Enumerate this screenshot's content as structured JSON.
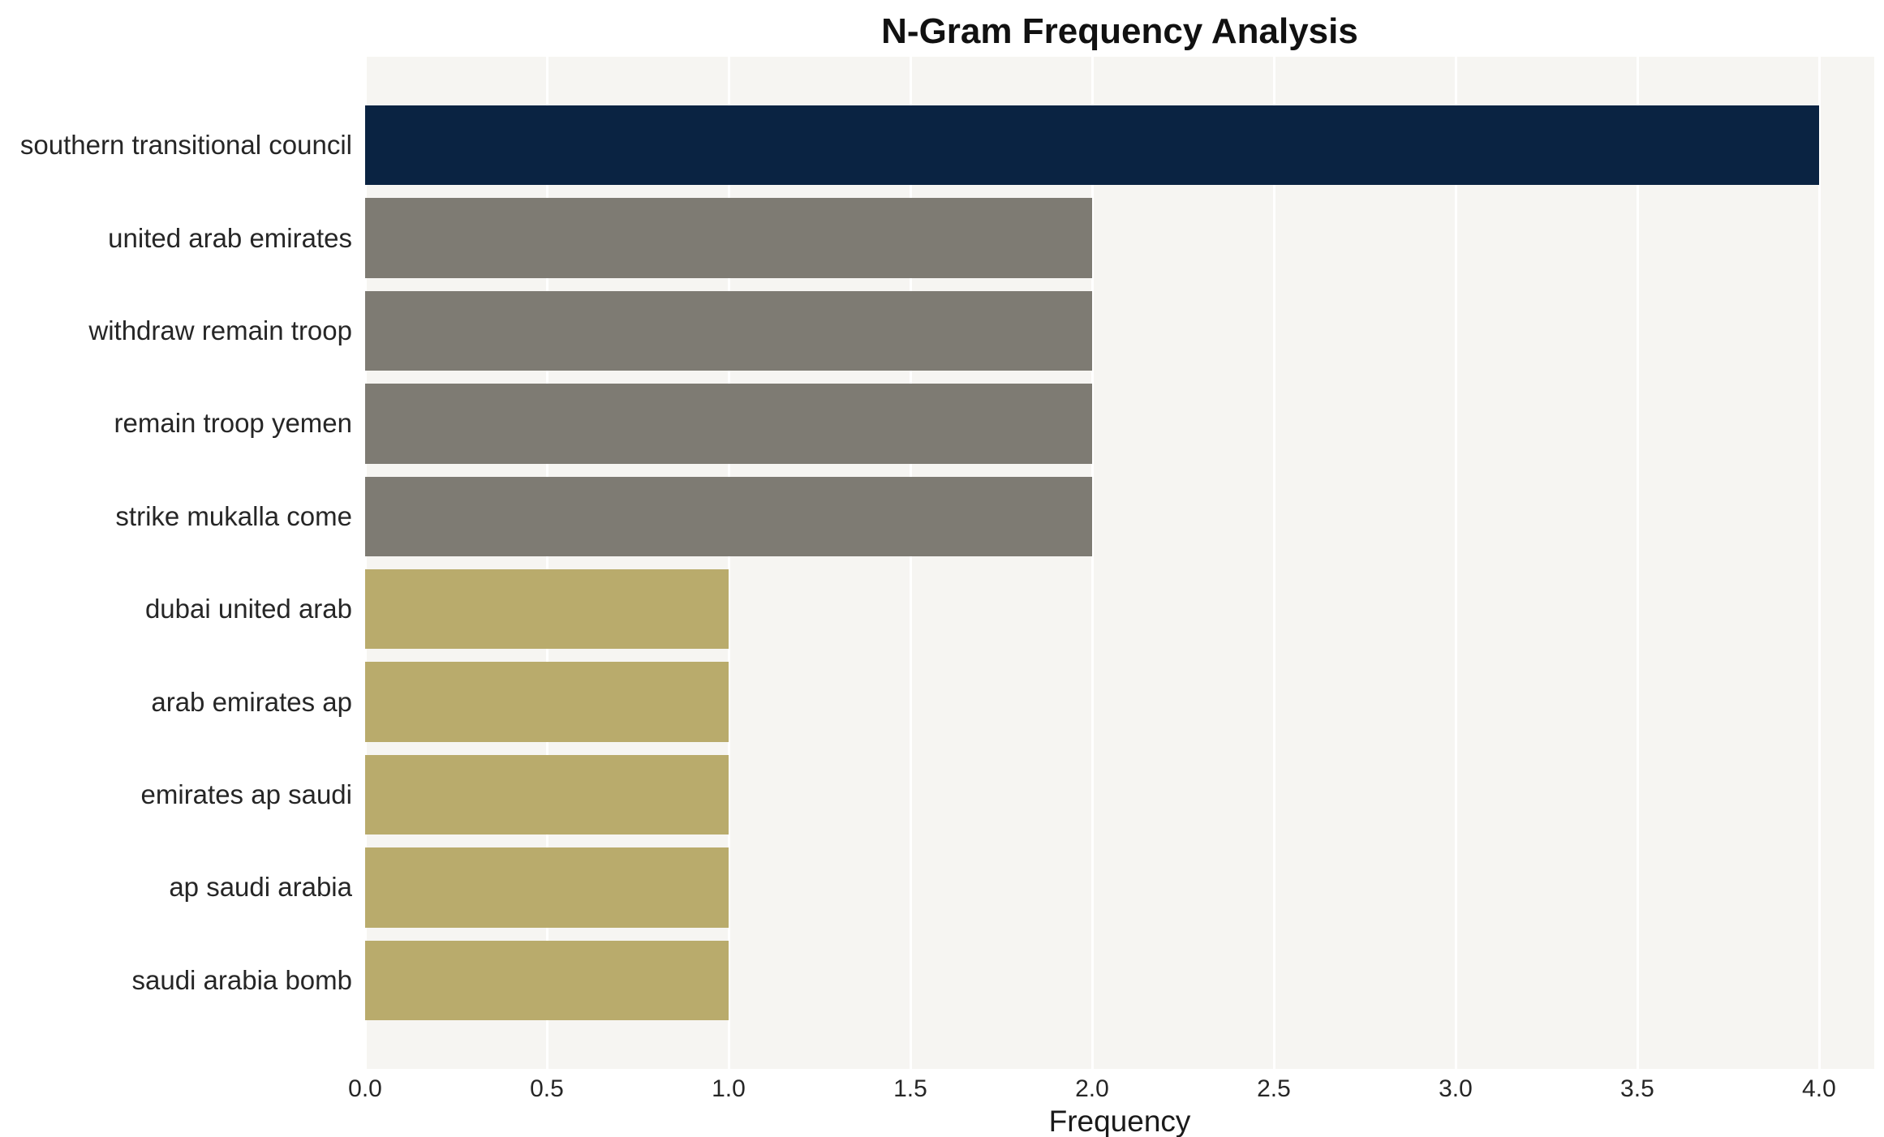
{
  "chart_data": {
    "type": "bar",
    "orientation": "horizontal",
    "title": "N-Gram Frequency Analysis",
    "xlabel": "Frequency",
    "ylabel": "",
    "grid": true,
    "plot_background": "#f6f5f2",
    "gridline_color": "#ffffff",
    "categories": [
      "southern transitional council",
      "united arab emirates",
      "withdraw remain troop",
      "remain troop yemen",
      "strike mukalla come",
      "dubai united arab",
      "arab emirates ap",
      "emirates ap saudi",
      "ap saudi arabia",
      "saudi arabia bomb"
    ],
    "values": [
      4,
      2,
      2,
      2,
      2,
      1,
      1,
      1,
      1,
      1
    ],
    "bar_colors": [
      "#0a2342",
      "#7e7b73",
      "#7e7b73",
      "#7e7b73",
      "#7e7b73",
      "#b9ab6c",
      "#b9ab6c",
      "#b9ab6c",
      "#b9ab6c",
      "#b9ab6c"
    ],
    "xlim": [
      0,
      4.152
    ],
    "xticks": [
      {
        "pos": 0.0,
        "label": "0.0"
      },
      {
        "pos": 0.5,
        "label": "0.5"
      },
      {
        "pos": 1.0,
        "label": "1.0"
      },
      {
        "pos": 1.5,
        "label": "1.5"
      },
      {
        "pos": 2.0,
        "label": "2.0"
      },
      {
        "pos": 2.5,
        "label": "2.5"
      },
      {
        "pos": 3.0,
        "label": "3.0"
      },
      {
        "pos": 3.5,
        "label": "3.5"
      },
      {
        "pos": 4.0,
        "label": "4.0"
      }
    ]
  }
}
